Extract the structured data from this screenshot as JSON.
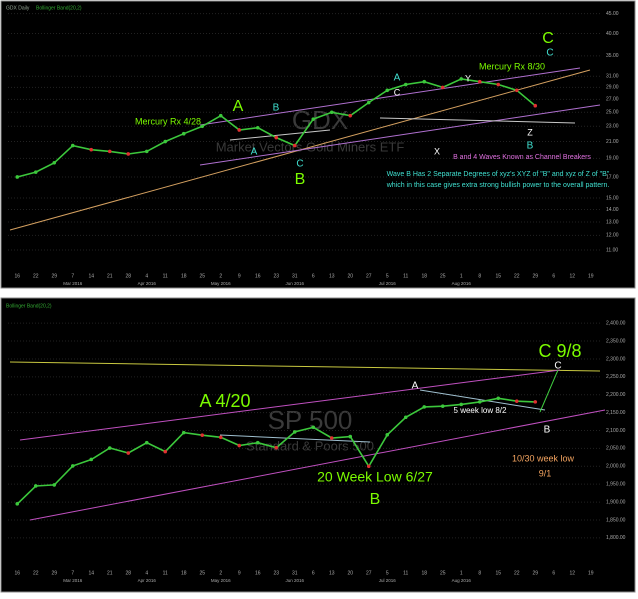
{
  "chart_data": [
    {
      "type": "line",
      "title": "GDX Daily",
      "subtitle": "Bollinger Band(20,2)",
      "watermark": "GDX",
      "watermark_subtitle": "Market Vectors Gold Miners ETF",
      "log_scale": true,
      "color": "#3cc83c",
      "grid": true,
      "categories": [
        "16",
        "22",
        "29",
        "7",
        "14",
        "21",
        "28",
        "4",
        "11",
        "18",
        "25",
        "2",
        "9",
        "16",
        "23",
        "31",
        "6",
        "13",
        "20",
        "27",
        "5",
        "11",
        "18",
        "25",
        "1",
        "8",
        "15",
        "22",
        "29",
        "6",
        "12",
        "19"
      ],
      "months": [
        "Mar 2016",
        "Apr 2016",
        "May 2016",
        "Jun 2016",
        "Jul 2016",
        "Aug 2016"
      ],
      "values": [
        17,
        17.5,
        18.5,
        20.5,
        20,
        19.8,
        19.5,
        19.8,
        21,
        22,
        23,
        24.5,
        22.5,
        22.8,
        21.5,
        20.5,
        24,
        25,
        24.5,
        26.5,
        28.5,
        29.5,
        30,
        29,
        30.5,
        30,
        29.5,
        28.5,
        26,
        null,
        null,
        null
      ],
      "ylim": [
        10,
        46
      ],
      "yticks": [
        {
          "value": 45,
          "label": "45.00"
        },
        {
          "value": 40,
          "label": "40.00"
        },
        {
          "value": 35,
          "label": "35.00"
        },
        {
          "value": 31,
          "label": "31.00"
        },
        {
          "value": 29,
          "label": "29.00"
        },
        {
          "value": 27,
          "label": "27.00"
        },
        {
          "value": 25,
          "label": "25.00"
        },
        {
          "value": 23,
          "label": "23.00"
        },
        {
          "value": 21,
          "label": "21.00"
        },
        {
          "value": 19,
          "label": "19.00"
        },
        {
          "value": 17,
          "label": "17.00"
        },
        {
          "value": 15,
          "label": "15.00"
        },
        {
          "value": 14,
          "label": "14.00"
        },
        {
          "value": 13,
          "label": "13.00"
        },
        {
          "value": 12,
          "label": "12.00"
        },
        {
          "value": 11,
          "label": "11.00"
        }
      ],
      "annotations": [
        {
          "text": "Mercury Rx 4/28",
          "color": "#7cfc00"
        },
        {
          "text": "A",
          "color": "#7cfc00"
        },
        {
          "text": "B",
          "color": "#40e0d0"
        },
        {
          "text": "A",
          "color": "#40e0d0"
        },
        {
          "text": "C",
          "color": "#40e0d0"
        },
        {
          "text": "B",
          "color": "#7cfc00"
        },
        {
          "text": "A",
          "color": "#40e0d0"
        },
        {
          "text": "C",
          "color": "#ffffff"
        },
        {
          "text": "X",
          "color": "#ffffff"
        },
        {
          "text": "Y",
          "color": "#ffffff"
        },
        {
          "text": "Z",
          "color": "#ffffff"
        },
        {
          "text": "B",
          "color": "#40e0d0"
        },
        {
          "text": "Mercury Rx 8/30",
          "color": "#7cfc00"
        },
        {
          "text": "C",
          "color": "#7cfc00"
        },
        {
          "text": "C",
          "color": "#40e0d0"
        },
        {
          "text": "B and 4 Waves Known as Channel Breakers",
          "color": "#e070e0"
        },
        {
          "text": "Wave B Has 2 Separate Degrees of  xyz's XYZ of \"B\" and xyz of Z of \"B\"",
          "color": "#40e0d0"
        },
        {
          "text": "which in this case gives extra strong bullish power to the overall pattern.",
          "color": "#40e0d0"
        }
      ]
    },
    {
      "type": "line",
      "subtitle": "Bollinger Band(20,2)",
      "watermark": "SP 500",
      "watermark_subtitle": "Standard & Poors 500",
      "log_scale": false,
      "color": "#3cc83c",
      "grid": true,
      "categories": [
        "16",
        "22",
        "29",
        "7",
        "14",
        "21",
        "28",
        "4",
        "11",
        "18",
        "25",
        "2",
        "9",
        "16",
        "23",
        "31",
        "6",
        "13",
        "20",
        "27",
        "5",
        "11",
        "18",
        "25",
        "1",
        "8",
        "15",
        "22",
        "29",
        "6",
        "12",
        "19"
      ],
      "months": [
        "Mar 2016",
        "Apr 2016",
        "May 2016",
        "Jun 2016",
        "Jul 2016",
        "Aug 2016"
      ],
      "values": [
        1895,
        1945,
        1948,
        2001,
        2019,
        2051,
        2037,
        2066,
        2041,
        2094,
        2087,
        2081,
        2058,
        2066,
        2052,
        2096,
        2109,
        2079,
        2083,
        2000,
        2088,
        2137,
        2166,
        2168,
        2173,
        2180,
        2190,
        2182,
        2180,
        null,
        null,
        null
      ],
      "ylim": [
        1780,
        2420
      ],
      "yticks": [
        {
          "value": 2400,
          "label": "2,400.00"
        },
        {
          "value": 2350,
          "label": "2,350.00"
        },
        {
          "value": 2300,
          "label": "2,300.00"
        },
        {
          "value": 2250,
          "label": "2,250.00"
        },
        {
          "value": 2200,
          "label": "2,200.00"
        },
        {
          "value": 2150,
          "label": "2,150.00"
        },
        {
          "value": 2100,
          "label": "2,100.00"
        },
        {
          "value": 2050,
          "label": "2,050.00"
        },
        {
          "value": 2000,
          "label": "2,000.00"
        },
        {
          "value": 1950,
          "label": "1,950.00"
        },
        {
          "value": 1900,
          "label": "1,900.00"
        },
        {
          "value": 1850,
          "label": "1,850.00"
        },
        {
          "value": 1800,
          "label": "1,800.00"
        }
      ],
      "annotations": [
        {
          "text": "A 4/20",
          "color": "#7cfc00"
        },
        {
          "text": "A",
          "color": "#ffffff"
        },
        {
          "text": "C 9/8",
          "color": "#7cfc00"
        },
        {
          "text": "C",
          "color": "#ffffff"
        },
        {
          "text": "5 week low 8/2",
          "color": "#ffffff"
        },
        {
          "text": "B",
          "color": "#ffffff"
        },
        {
          "text": "20 Week Low 6/27",
          "color": "#7cfc00"
        },
        {
          "text": "B",
          "color": "#7cfc00"
        },
        {
          "text": "10/30 week low",
          "color": "#f4a460"
        },
        {
          "text": "9/1",
          "color": "#f4a460"
        }
      ]
    }
  ]
}
